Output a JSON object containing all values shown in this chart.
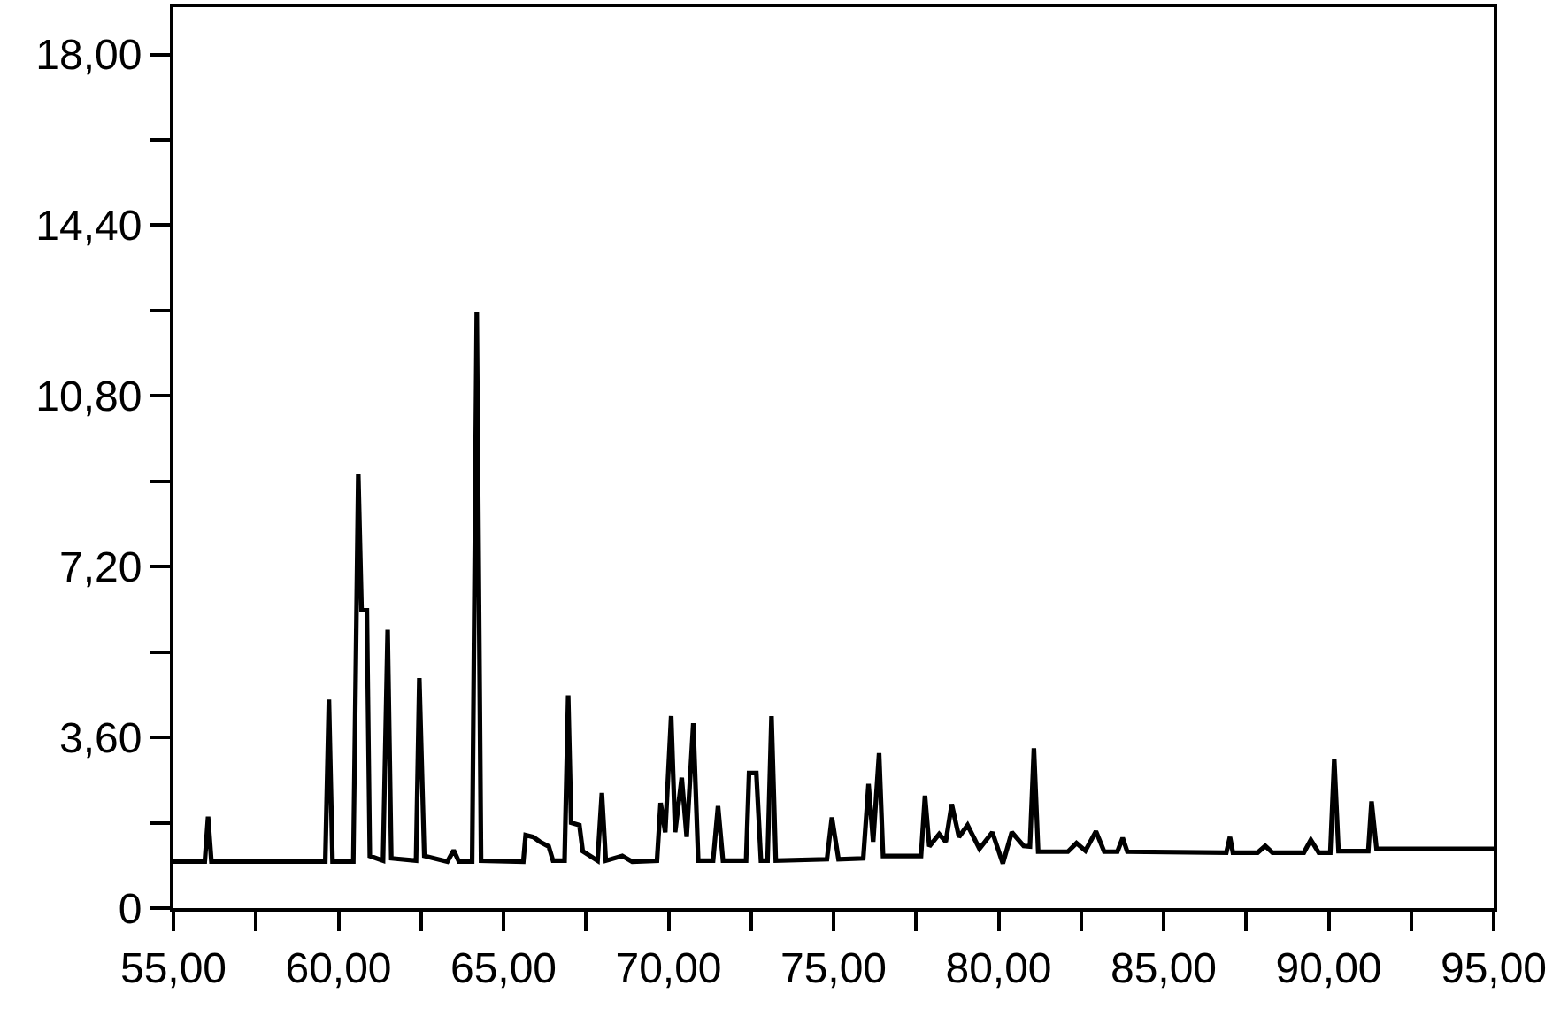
{
  "chart_data": {
    "type": "line",
    "xlim": [
      55,
      95
    ],
    "ylim": [
      0,
      19
    ],
    "xticks": [
      {
        "value": 55,
        "label": "55,00"
      },
      {
        "value": 57.5,
        "label": null
      },
      {
        "value": 60,
        "label": "60,00"
      },
      {
        "value": 62.5,
        "label": null
      },
      {
        "value": 65,
        "label": "65,00"
      },
      {
        "value": 67.5,
        "label": null
      },
      {
        "value": 70,
        "label": "70,00"
      },
      {
        "value": 72.5,
        "label": null
      },
      {
        "value": 75,
        "label": "75,00"
      },
      {
        "value": 77.5,
        "label": null
      },
      {
        "value": 80,
        "label": "80,00"
      },
      {
        "value": 82.5,
        "label": null
      },
      {
        "value": 85,
        "label": "85,00"
      },
      {
        "value": 87.5,
        "label": null
      },
      {
        "value": 90,
        "label": "90,00"
      },
      {
        "value": 92.5,
        "label": null
      },
      {
        "value": 95,
        "label": "95,00"
      }
    ],
    "yticks": [
      0,
      {
        "value": 1.8,
        "label": null
      },
      {
        "value": 3.6,
        "label": "3,60"
      },
      {
        "value": 5.4,
        "label": null
      },
      {
        "value": 7.2,
        "label": "7,20"
      },
      {
        "value": 9.0,
        "label": null
      },
      {
        "value": 10.8,
        "label": "10,80"
      },
      {
        "value": 12.6,
        "label": null
      },
      {
        "value": 14.4,
        "label": "14,40"
      },
      {
        "value": 16.2,
        "label": null
      },
      {
        "value": 18,
        "label": "18,00"
      }
    ],
    "grid": false,
    "line_style": "solid",
    "series": [
      {
        "color": "#000000",
        "x": [
          55.0,
          55.95,
          56.05,
          56.15,
          59.6,
          59.71,
          59.82,
          60.45,
          60.6,
          60.7,
          60.86,
          60.95,
          61.35,
          61.49,
          61.6,
          62.35,
          62.45,
          62.6,
          63.3,
          63.49,
          63.65,
          64.05,
          64.19,
          64.32,
          65.6,
          65.67,
          65.9,
          66.1,
          66.37,
          66.5,
          66.85,
          66.96,
          67.05,
          67.3,
          67.4,
          67.85,
          67.98,
          68.1,
          68.6,
          68.9,
          69.65,
          69.76,
          69.9,
          70.08,
          70.2,
          70.4,
          70.55,
          70.75,
          70.9,
          71.35,
          71.5,
          71.65,
          72.35,
          72.44,
          72.66,
          72.8,
          73.0,
          73.12,
          73.25,
          74.8,
          74.95,
          75.15,
          75.9,
          76.06,
          76.2,
          76.38,
          76.5,
          77.65,
          77.77,
          77.9,
          78.2,
          78.4,
          78.58,
          78.8,
          79.06,
          79.42,
          79.81,
          80.13,
          80.4,
          80.76,
          80.95,
          81.07,
          81.2,
          82.1,
          82.36,
          82.63,
          82.95,
          83.2,
          83.6,
          83.76,
          83.9,
          86.9,
          87.01,
          87.1,
          87.85,
          88.08,
          88.3,
          89.25,
          89.46,
          89.7,
          90.05,
          90.17,
          90.3,
          91.2,
          91.3,
          91.45,
          95.0
        ],
        "values": [
          0.98,
          0.98,
          1.93,
          0.98,
          0.98,
          4.4,
          0.98,
          0.98,
          9.16,
          6.28,
          6.28,
          1.1,
          1.0,
          5.87,
          1.05,
          1.0,
          4.85,
          1.1,
          0.98,
          1.22,
          0.98,
          0.98,
          12.57,
          1.0,
          0.98,
          1.54,
          1.5,
          1.4,
          1.3,
          1.0,
          1.0,
          4.49,
          1.8,
          1.75,
          1.2,
          1.0,
          2.43,
          1.0,
          1.1,
          0.98,
          1.0,
          2.22,
          1.6,
          4.05,
          1.6,
          2.75,
          1.5,
          3.9,
          1.0,
          1.0,
          2.15,
          1.0,
          1.0,
          2.85,
          2.85,
          1.0,
          1.0,
          4.05,
          1.0,
          1.03,
          1.91,
          1.03,
          1.05,
          2.62,
          1.4,
          3.27,
          1.1,
          1.1,
          2.37,
          1.3,
          1.56,
          1.4,
          2.19,
          1.5,
          1.75,
          1.25,
          1.6,
          0.94,
          1.6,
          1.31,
          1.3,
          3.37,
          1.19,
          1.19,
          1.37,
          1.21,
          1.62,
          1.19,
          1.19,
          1.48,
          1.19,
          1.17,
          1.5,
          1.17,
          1.17,
          1.31,
          1.17,
          1.17,
          1.44,
          1.17,
          1.17,
          3.14,
          1.2,
          1.2,
          2.25,
          1.25,
          1.25
        ]
      }
    ]
  }
}
